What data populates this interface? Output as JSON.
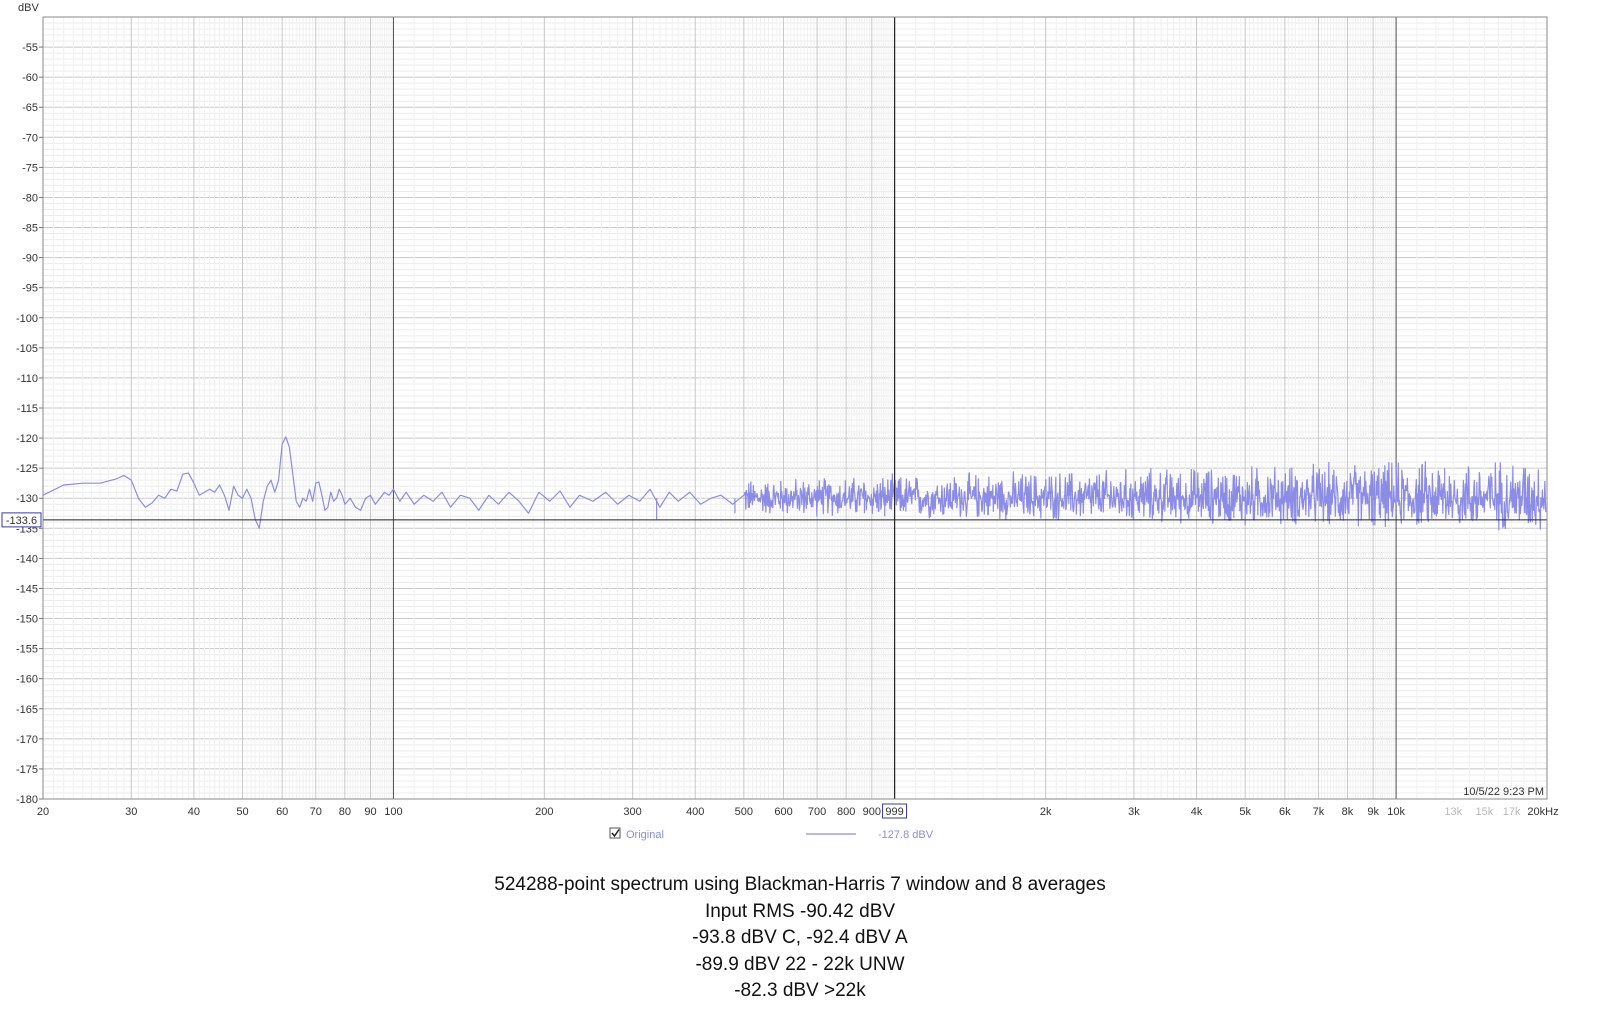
{
  "chart_data": {
    "type": "line",
    "ylabel": "dBV",
    "xscale": "log",
    "xlim": [
      20,
      20000
    ],
    "ylim": [
      -180,
      -50
    ],
    "grid": true,
    "y_major_ticks": [
      -55,
      -60,
      -65,
      -70,
      -75,
      -80,
      -85,
      -90,
      -95,
      -100,
      -105,
      -110,
      -115,
      -120,
      -125,
      -130,
      -135,
      -140,
      -145,
      -150,
      -155,
      -160,
      -165,
      -170,
      -175,
      -180
    ],
    "y_tick_labels": [
      "-55",
      "-60",
      "-65",
      "-70",
      "-75",
      "-80",
      "-85",
      "-90",
      "-95",
      "-100",
      "-105",
      "-110",
      "-115",
      "-120",
      "-125",
      "-130",
      "-135",
      "-140",
      "-145",
      "-150",
      "-155",
      "-160",
      "-165",
      "-170",
      "-175",
      "-180"
    ],
    "x_ticks": [
      20,
      30,
      40,
      50,
      60,
      70,
      80,
      90,
      100,
      200,
      300,
      400,
      500,
      600,
      700,
      800,
      900,
      2000,
      3000,
      4000,
      5000,
      6000,
      7000,
      8000,
      9000,
      10000,
      13000,
      15000,
      17000,
      20000
    ],
    "x_tick_labels": [
      "20",
      "30",
      "40",
      "50",
      "60",
      "70",
      "80",
      "90",
      "100",
      "200",
      "300",
      "400",
      "500",
      "600",
      "700",
      "800",
      "900",
      "2k",
      "3k",
      "4k",
      "5k",
      "6k",
      "7k",
      "8k",
      "9k",
      "10k",
      "13k",
      "15k",
      "17k",
      "20kHz"
    ],
    "x_minor_label_ticks": [
      13000,
      15000,
      17000
    ],
    "cursor": {
      "x": 999,
      "x_label": "999",
      "y": -133.6,
      "y_label": "-133.6"
    },
    "timestamp": "10/5/22 9:23 PM",
    "legend": {
      "checkbox_checked": true,
      "label": "Original",
      "value": "-127.8 dBV",
      "color": "#8c8ce6"
    },
    "series": [
      {
        "name": "Original",
        "color": "#8c8ce6",
        "points": [
          [
            20,
            -129.5
          ],
          [
            22,
            -127.8
          ],
          [
            24,
            -127.5
          ],
          [
            26,
            -127.5
          ],
          [
            28,
            -126.8
          ],
          [
            29,
            -126.2
          ],
          [
            30,
            -127.0
          ],
          [
            31,
            -130.0
          ],
          [
            32,
            -131.5
          ],
          [
            33,
            -130.8
          ],
          [
            34,
            -129.5
          ],
          [
            35,
            -130.0
          ],
          [
            36,
            -128.5
          ],
          [
            37,
            -128.8
          ],
          [
            38,
            -126.0
          ],
          [
            39,
            -125.8
          ],
          [
            40,
            -127.5
          ],
          [
            41,
            -129.5
          ],
          [
            42,
            -129.0
          ],
          [
            43,
            -128.5
          ],
          [
            44,
            -129.0
          ],
          [
            45,
            -127.8
          ],
          [
            46,
            -129.5
          ],
          [
            47,
            -132.0
          ],
          [
            48,
            -128.0
          ],
          [
            49,
            -129.5
          ],
          [
            50,
            -130.0
          ],
          [
            51,
            -128.5
          ],
          [
            52,
            -130.0
          ],
          [
            53,
            -133.5
          ],
          [
            54,
            -135.0
          ],
          [
            55,
            -130.5
          ],
          [
            56,
            -128.0
          ],
          [
            57,
            -127.0
          ],
          [
            58,
            -129.0
          ],
          [
            59,
            -127.0
          ],
          [
            60,
            -121.0
          ],
          [
            61,
            -119.8
          ],
          [
            62,
            -121.5
          ],
          [
            63,
            -126.0
          ],
          [
            64,
            -130.5
          ],
          [
            65,
            -131.5
          ],
          [
            66,
            -130.0
          ],
          [
            67,
            -130.5
          ],
          [
            68,
            -128.5
          ],
          [
            69,
            -130.5
          ],
          [
            70,
            -127.5
          ],
          [
            71,
            -127.3
          ],
          [
            72,
            -129.5
          ],
          [
            73,
            -132.0
          ],
          [
            74,
            -131.5
          ],
          [
            75,
            -129.0
          ],
          [
            76,
            -130.5
          ],
          [
            77,
            -130.0
          ],
          [
            78,
            -128.5
          ],
          [
            79,
            -129.5
          ],
          [
            80,
            -131.0
          ],
          [
            82,
            -130.0
          ],
          [
            84,
            -131.5
          ],
          [
            86,
            -132.0
          ],
          [
            88,
            -130.0
          ],
          [
            90,
            -129.5
          ],
          [
            92,
            -131.0
          ],
          [
            94,
            -130.0
          ],
          [
            96,
            -129.0
          ],
          [
            98,
            -129.5
          ],
          [
            100,
            -128.5
          ],
          [
            103,
            -130.5
          ],
          [
            106,
            -129.0
          ],
          [
            110,
            -131.0
          ],
          [
            115,
            -129.5
          ],
          [
            120,
            -130.5
          ],
          [
            125,
            -129.0
          ],
          [
            130,
            -131.5
          ],
          [
            136,
            -129.5
          ],
          [
            142,
            -130.0
          ],
          [
            148,
            -132.0
          ],
          [
            155,
            -129.5
          ],
          [
            162,
            -131.0
          ],
          [
            170,
            -129.0
          ],
          [
            178,
            -130.5
          ],
          [
            186,
            -132.5
          ],
          [
            195,
            -129.0
          ],
          [
            205,
            -130.5
          ],
          [
            215,
            -128.8
          ],
          [
            225,
            -131.5
          ],
          [
            235,
            -129.5
          ],
          [
            250,
            -130.5
          ],
          [
            265,
            -129.0
          ],
          [
            280,
            -131.0
          ],
          [
            295,
            -129.5
          ],
          [
            310,
            -130.5
          ],
          [
            325,
            -128.5
          ],
          [
            340,
            -131.5
          ],
          [
            355,
            -129.0
          ],
          [
            370,
            -130.5
          ],
          [
            390,
            -129.0
          ],
          [
            410,
            -131.0
          ],
          [
            430,
            -130.0
          ],
          [
            450,
            -129.5
          ],
          [
            475,
            -131.0
          ],
          [
            500,
            -129.5
          ]
        ],
        "noise_band_from_hz": 500,
        "noise_center_db": -130.0,
        "noise_spread_low_db": [
          3.0,
          6.0
        ],
        "noise_spread_high_db": [
          3.5,
          7.5
        ],
        "noise_spikes": [
          [
            335,
            -133.5
          ],
          [
            480,
            -132.5
          ],
          [
            700,
            -131.5
          ],
          [
            870,
            -132.5
          ],
          [
            955,
            -133.0
          ],
          [
            2900,
            -133.0
          ],
          [
            4300,
            -133.5
          ],
          [
            5000,
            -134.5
          ],
          [
            6500,
            -131.5
          ],
          [
            9000,
            -134.5
          ],
          [
            11500,
            -128.0
          ],
          [
            12500,
            -125.0
          ],
          [
            18000,
            -127.5
          ]
        ]
      }
    ]
  },
  "caption_lines": [
    "524288-point spectrum using Blackman-Harris 7 window and 8 averages",
    "Input RMS -90.42 dBV",
    "-93.8 dBV C, -92.4 dBV A",
    "-89.9 dBV 22 - 22k UNW",
    "-82.3 dBV >22k"
  ]
}
